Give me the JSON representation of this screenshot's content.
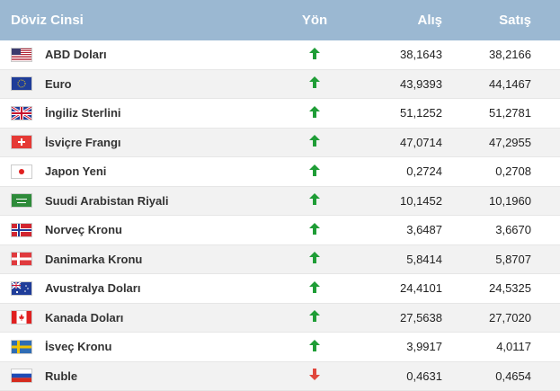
{
  "header": {
    "currency": "Döviz Cinsi",
    "direction": "Yön",
    "buy": "Alış",
    "sell": "Satış"
  },
  "rows": [
    {
      "name": "ABD Doları",
      "dir": "up",
      "buy": "38,1643",
      "sell": "38,2166",
      "flag": "us-flag-icon"
    },
    {
      "name": "Euro",
      "dir": "up",
      "buy": "43,9393",
      "sell": "44,1467",
      "flag": "eu-flag-icon"
    },
    {
      "name": "İngiliz Sterlini",
      "dir": "up",
      "buy": "51,1252",
      "sell": "51,2781",
      "flag": "uk-flag-icon"
    },
    {
      "name": "İsviçre Frangı",
      "dir": "up",
      "buy": "47,0714",
      "sell": "47,2955",
      "flag": "ch-flag-icon"
    },
    {
      "name": "Japon Yeni",
      "dir": "up",
      "buy": "0,2724",
      "sell": "0,2708",
      "flag": "jp-flag-icon"
    },
    {
      "name": "Suudi Arabistan Riyali",
      "dir": "up",
      "buy": "10,1452",
      "sell": "10,1960",
      "flag": "sa-flag-icon"
    },
    {
      "name": "Norveç Kronu",
      "dir": "up",
      "buy": "3,6487",
      "sell": "3,6670",
      "flag": "no-flag-icon"
    },
    {
      "name": "Danimarka Kronu",
      "dir": "up",
      "buy": "5,8414",
      "sell": "5,8707",
      "flag": "dk-flag-icon"
    },
    {
      "name": "Avustralya Doları",
      "dir": "up",
      "buy": "24,4101",
      "sell": "24,5325",
      "flag": "au-flag-icon"
    },
    {
      "name": "Kanada Doları",
      "dir": "up",
      "buy": "27,5638",
      "sell": "27,7020",
      "flag": "ca-flag-icon"
    },
    {
      "name": "İsveç Kronu",
      "dir": "up",
      "buy": "3,9917",
      "sell": "4,0117",
      "flag": "se-flag-icon"
    },
    {
      "name": "Ruble",
      "dir": "down",
      "buy": "0,4631",
      "sell": "0,4654",
      "flag": "ru-flag-icon"
    }
  ],
  "colors": {
    "header_bg": "#9bb8d2",
    "up": "#1f9d36",
    "down": "#e0473c"
  }
}
